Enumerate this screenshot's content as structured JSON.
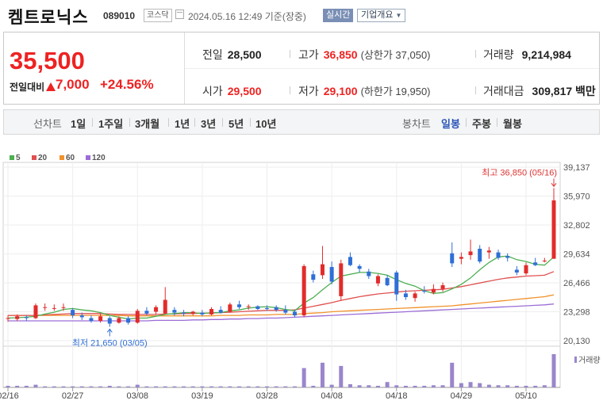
{
  "header": {
    "name": "켐트로닉스",
    "code": "089010",
    "market": "코스닥",
    "datetime": "2024.05.16 12:49 기준(장중)",
    "realtime_badge": "실시간",
    "company_button": "기업개요"
  },
  "quote": {
    "price": "35,500",
    "change_label": "전일대비",
    "change": "7,000",
    "change_pct": "+24.56%",
    "prev_close_label": "전일",
    "prev_close": "28,500",
    "open_label": "시가",
    "open": "29,500",
    "high_label": "고가",
    "high": "36,850",
    "upper_limit": "(상한가 37,050)",
    "low_label": "저가",
    "low": "29,100",
    "lower_limit": "(하한가 19,950)",
    "volume_label": "거래량",
    "volume": "9,214,984",
    "amount_label": "거래대금",
    "amount": "309,817 백만"
  },
  "tabs": {
    "line_label": "선차트",
    "periods": [
      "1일",
      "1주일",
      "3개월",
      "1년",
      "3년",
      "5년",
      "10년"
    ],
    "candle_label": "봉차트",
    "candles": [
      "일봉",
      "주봉",
      "월봉"
    ],
    "active_candle": "일봉"
  },
  "colors": {
    "up": "#e22b2b",
    "down": "#2f6fd6",
    "ma5": "#4caf50",
    "ma20": "#e05050",
    "ma60": "#f0922c",
    "ma120": "#9b6dd6",
    "volume": "#9a86cc"
  },
  "chart_data": {
    "type": "candlestick",
    "ylim": [
      20130,
      39137
    ],
    "yticks": [
      "39,137",
      "35,970",
      "32,802",
      "29,634",
      "26,466",
      "23,298",
      "20,130"
    ],
    "ytick_values": [
      39137,
      35970,
      32802,
      29634,
      26466,
      23298,
      20130
    ],
    "xticks": [
      "02/16",
      "02/27",
      "03/08",
      "03/19",
      "03/28",
      "04/08",
      "04/18",
      "04/29",
      "05/10"
    ],
    "xtick_index": [
      0,
      7,
      14,
      21,
      28,
      35,
      42,
      49,
      56
    ],
    "legend": [
      "5",
      "20",
      "60",
      "120"
    ],
    "volume_label": "거래량",
    "max_annotation": "최고 36,850 (05/16)",
    "min_annotation": "최저 21,650 (03/05)",
    "candles": [
      {
        "o": 22550,
        "h": 22900,
        "l": 22200,
        "c": 22600
      },
      {
        "o": 22500,
        "h": 23000,
        "l": 22300,
        "c": 22800
      },
      {
        "o": 22700,
        "h": 22900,
        "l": 22300,
        "c": 22600
      },
      {
        "o": 22600,
        "h": 24200,
        "l": 22500,
        "c": 24000
      },
      {
        "o": 23800,
        "h": 24200,
        "l": 23400,
        "c": 23800
      },
      {
        "o": 23700,
        "h": 24100,
        "l": 23400,
        "c": 23700
      },
      {
        "o": 23800,
        "h": 24200,
        "l": 23400,
        "c": 23800
      },
      {
        "o": 23500,
        "h": 23700,
        "l": 22600,
        "c": 22900
      },
      {
        "o": 22900,
        "h": 23200,
        "l": 22400,
        "c": 22700
      },
      {
        "o": 22600,
        "h": 22900,
        "l": 22100,
        "c": 22300
      },
      {
        "o": 22300,
        "h": 23100,
        "l": 22100,
        "c": 22800
      },
      {
        "o": 22600,
        "h": 22800,
        "l": 21650,
        "c": 22000
      },
      {
        "o": 22100,
        "h": 22800,
        "l": 22000,
        "c": 22600
      },
      {
        "o": 22600,
        "h": 22800,
        "l": 21900,
        "c": 22100
      },
      {
        "o": 22100,
        "h": 23600,
        "l": 22000,
        "c": 23400
      },
      {
        "o": 23400,
        "h": 23800,
        "l": 22900,
        "c": 23100
      },
      {
        "o": 23300,
        "h": 24000,
        "l": 23000,
        "c": 23800
      },
      {
        "o": 23100,
        "h": 26000,
        "l": 23000,
        "c": 24600
      },
      {
        "o": 23500,
        "h": 23800,
        "l": 22900,
        "c": 23200
      },
      {
        "o": 23200,
        "h": 23500,
        "l": 22800,
        "c": 23100
      },
      {
        "o": 23100,
        "h": 23400,
        "l": 22900,
        "c": 23300
      },
      {
        "o": 23200,
        "h": 23500,
        "l": 22800,
        "c": 23000
      },
      {
        "o": 23000,
        "h": 23800,
        "l": 22900,
        "c": 23600
      },
      {
        "o": 23500,
        "h": 23900,
        "l": 23100,
        "c": 23200
      },
      {
        "o": 23300,
        "h": 24300,
        "l": 23200,
        "c": 24100
      },
      {
        "o": 24100,
        "h": 24500,
        "l": 23600,
        "c": 23800
      },
      {
        "o": 23900,
        "h": 24100,
        "l": 23500,
        "c": 23900
      },
      {
        "o": 23900,
        "h": 24000,
        "l": 23500,
        "c": 23600
      },
      {
        "o": 23700,
        "h": 24000,
        "l": 23400,
        "c": 23600
      },
      {
        "o": 23800,
        "h": 24000,
        "l": 23300,
        "c": 23500
      },
      {
        "o": 23500,
        "h": 24000,
        "l": 23000,
        "c": 23200
      },
      {
        "o": 23300,
        "h": 23500,
        "l": 22700,
        "c": 22900
      },
      {
        "o": 22900,
        "h": 28500,
        "l": 22700,
        "c": 28300
      },
      {
        "o": 27400,
        "h": 27800,
        "l": 26500,
        "c": 26800
      },
      {
        "o": 27300,
        "h": 30500,
        "l": 26900,
        "c": 28500
      },
      {
        "o": 28200,
        "h": 28800,
        "l": 26300,
        "c": 26600
      },
      {
        "o": 25000,
        "h": 29000,
        "l": 24500,
        "c": 28600
      },
      {
        "o": 29300,
        "h": 29800,
        "l": 28300,
        "c": 28400
      },
      {
        "o": 28300,
        "h": 28500,
        "l": 27600,
        "c": 28000
      },
      {
        "o": 27700,
        "h": 28000,
        "l": 26900,
        "c": 27200
      },
      {
        "o": 26400,
        "h": 27400,
        "l": 26100,
        "c": 27200
      },
      {
        "o": 27000,
        "h": 27300,
        "l": 26100,
        "c": 26200
      },
      {
        "o": 27600,
        "h": 27800,
        "l": 24500,
        "c": 25200
      },
      {
        "o": 25300,
        "h": 25700,
        "l": 24600,
        "c": 24900
      },
      {
        "o": 24800,
        "h": 25500,
        "l": 24400,
        "c": 25300
      },
      {
        "o": 25600,
        "h": 26100,
        "l": 25300,
        "c": 25500
      },
      {
        "o": 25400,
        "h": 26300,
        "l": 25200,
        "c": 25800
      },
      {
        "o": 25800,
        "h": 26500,
        "l": 25500,
        "c": 26200
      },
      {
        "o": 29700,
        "h": 30900,
        "l": 28200,
        "c": 28600
      },
      {
        "o": 29100,
        "h": 29800,
        "l": 28500,
        "c": 29300
      },
      {
        "o": 29500,
        "h": 31200,
        "l": 29000,
        "c": 29900
      },
      {
        "o": 30200,
        "h": 30600,
        "l": 28600,
        "c": 28800
      },
      {
        "o": 29800,
        "h": 30400,
        "l": 29100,
        "c": 30000
      },
      {
        "o": 29800,
        "h": 30100,
        "l": 29000,
        "c": 29200
      },
      {
        "o": 29400,
        "h": 29700,
        "l": 28800,
        "c": 29200
      },
      {
        "o": 27900,
        "h": 28300,
        "l": 27300,
        "c": 27600
      },
      {
        "o": 27500,
        "h": 28700,
        "l": 27300,
        "c": 28400
      },
      {
        "o": 28700,
        "h": 29200,
        "l": 28300,
        "c": 28400
      },
      {
        "o": 28900,
        "h": 29200,
        "l": 28700,
        "c": 28900
      },
      {
        "o": 29100,
        "h": 36850,
        "l": 29100,
        "c": 35500
      }
    ],
    "ma5": [
      22600,
      22650,
      22700,
      22800,
      23050,
      23250,
      23550,
      23650,
      23500,
      23400,
      23200,
      22900,
      22700,
      22500,
      22600,
      22600,
      22800,
      23000,
      23100,
      23200,
      23200,
      23100,
      23200,
      23200,
      23400,
      23500,
      23700,
      23800,
      23850,
      23750,
      23550,
      23400,
      24250,
      24850,
      25700,
      26500,
      27200,
      27400,
      27600,
      27600,
      27500,
      27300,
      26800,
      26400,
      26100,
      25600,
      25300,
      25400,
      25800,
      26300,
      27000,
      27900,
      28700,
      29300,
      29400,
      29000,
      28800,
      28500,
      28400,
      29300
    ],
    "ma20": [
      22900,
      22900,
      22900,
      22900,
      22950,
      23000,
      23050,
      23100,
      23100,
      23100,
      23100,
      23050,
      23000,
      23000,
      23000,
      23000,
      23000,
      23050,
      23050,
      23100,
      23100,
      23150,
      23150,
      23200,
      23250,
      23300,
      23350,
      23400,
      23450,
      23450,
      23450,
      23500,
      23700,
      23900,
      24100,
      24300,
      24550,
      24750,
      24950,
      25100,
      25250,
      25350,
      25450,
      25550,
      25600,
      25650,
      25700,
      25750,
      25900,
      26050,
      26250,
      26450,
      26650,
      26850,
      27000,
      27100,
      27200,
      27250,
      27300,
      27700
    ],
    "ma60": [
      22900,
      22900,
      22900,
      22900,
      22900,
      22900,
      22900,
      22900,
      22900,
      22900,
      22900,
      22900,
      22900,
      22850,
      22850,
      22850,
      22850,
      22850,
      22850,
      22850,
      22850,
      22850,
      22850,
      22900,
      22900,
      22900,
      22950,
      22950,
      22950,
      23000,
      23000,
      23000,
      23100,
      23150,
      23200,
      23300,
      23350,
      23400,
      23450,
      23500,
      23550,
      23600,
      23650,
      23700,
      23750,
      23800,
      23850,
      23900,
      23950,
      24050,
      24150,
      24250,
      24350,
      24450,
      24550,
      24650,
      24750,
      24850,
      24950,
      25150
    ],
    "ma120": [
      22300,
      22300,
      22300,
      22300,
      22300,
      22300,
      22300,
      22300,
      22300,
      22300,
      22300,
      22300,
      22300,
      22300,
      22300,
      22300,
      22350,
      22350,
      22350,
      22350,
      22400,
      22400,
      22450,
      22450,
      22500,
      22500,
      22550,
      22550,
      22600,
      22600,
      22650,
      22700,
      22750,
      22800,
      22850,
      22900,
      22950,
      23000,
      23050,
      23100,
      23150,
      23200,
      23250,
      23300,
      23350,
      23400,
      23450,
      23500,
      23550,
      23600,
      23650,
      23700,
      23750,
      23800,
      23850,
      23900,
      23950,
      24000,
      24050,
      24150
    ],
    "volume": [
      3,
      3,
      3,
      5,
      2,
      2,
      2,
      2,
      2,
      2,
      2,
      3,
      2,
      2,
      5,
      2,
      2,
      2,
      2,
      2,
      2,
      2,
      2,
      2,
      2,
      2,
      2,
      2,
      2,
      2,
      2,
      2,
      36,
      3,
      46,
      5,
      40,
      6,
      4,
      4,
      3,
      10,
      4,
      3,
      3,
      3,
      4,
      4,
      46,
      8,
      10,
      8,
      5,
      4,
      4,
      3,
      3,
      3,
      4,
      62
    ]
  }
}
